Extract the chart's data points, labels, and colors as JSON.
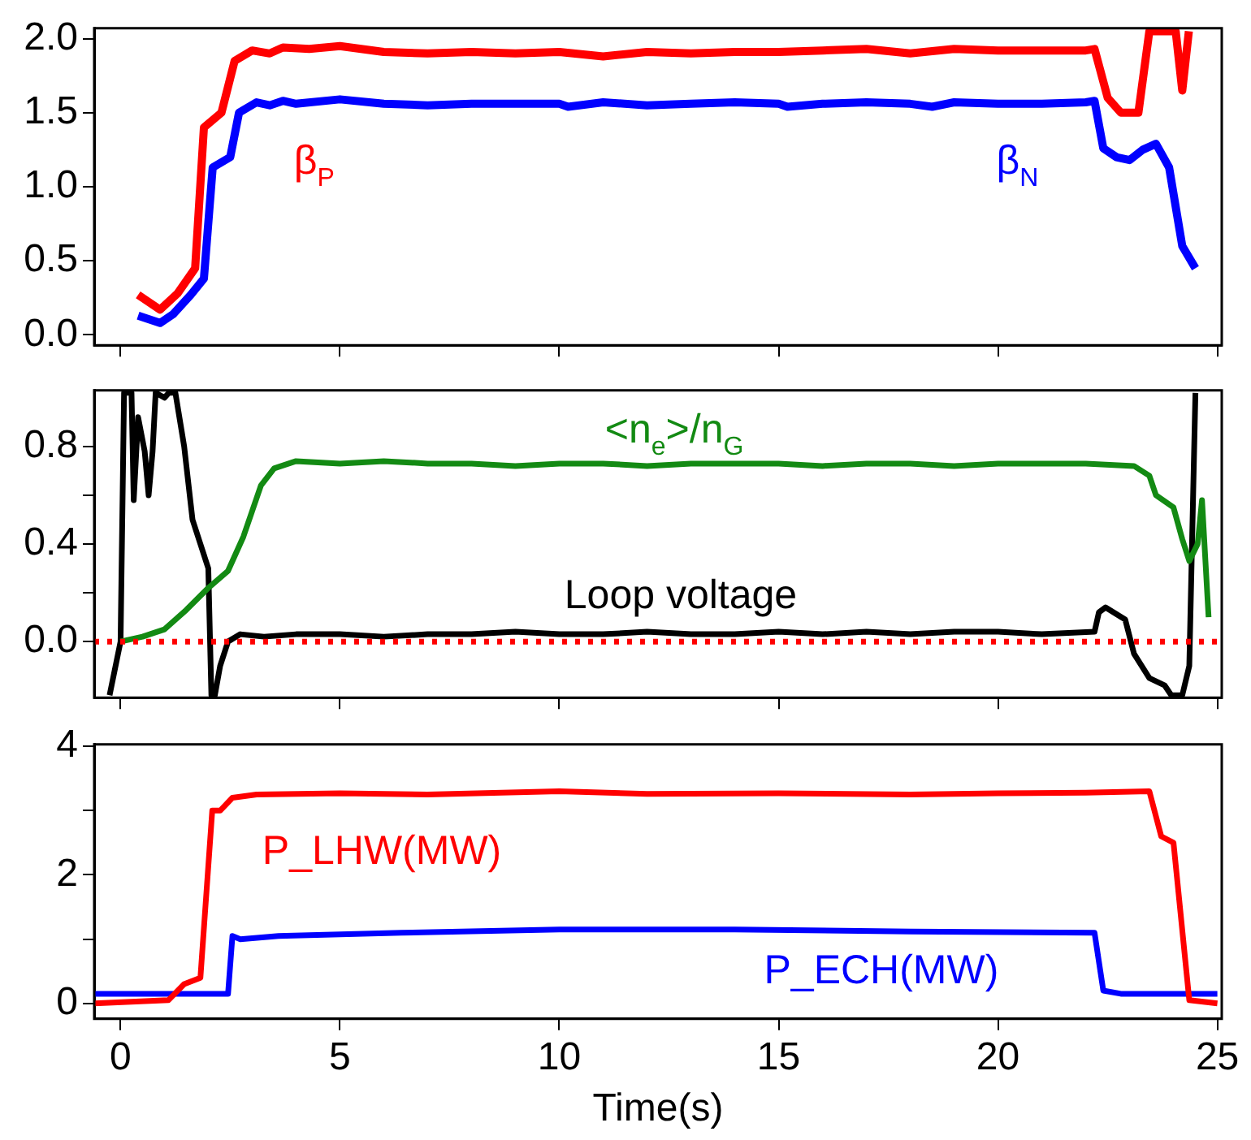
{
  "chart_data": [
    {
      "type": "line",
      "xlim": [
        -0.6,
        25.1
      ],
      "xticks": [
        0,
        5,
        10,
        15,
        20,
        25
      ],
      "ylim": [
        -0.07,
        2.07
      ],
      "yticks": [
        {
          "value": 0,
          "label": "0.0"
        },
        0.5,
        {
          "value": 1,
          "label": "1.0"
        },
        1.5,
        {
          "value": 2,
          "label": "2.0"
        }
      ],
      "tick_labels": "y",
      "legend": false,
      "grid": false,
      "marker": "none",
      "line_style": "solid",
      "series": [
        {
          "name": "β$_{P}$",
          "color": "#ff0000",
          "x": [
            0.4,
            0.9,
            1.3,
            1.7,
            1.9,
            2.3,
            2.6,
            3.0,
            3.4,
            3.7,
            4.3,
            5,
            6,
            7,
            8,
            9,
            10,
            11,
            12,
            13,
            14,
            15,
            16,
            17,
            18,
            19,
            20,
            21,
            22,
            22.2,
            22.5,
            22.8,
            23.2,
            23.45,
            24.05,
            24.2,
            24.35
          ],
          "values": [
            0.27,
            0.17,
            0.28,
            0.45,
            1.4,
            1.5,
            1.85,
            1.92,
            1.9,
            1.94,
            1.93,
            1.95,
            1.91,
            1.9,
            1.91,
            1.9,
            1.91,
            1.88,
            1.91,
            1.9,
            1.91,
            1.91,
            1.92,
            1.93,
            1.9,
            1.93,
            1.92,
            1.92,
            1.92,
            1.93,
            1.6,
            1.5,
            1.5,
            2.05,
            2.05,
            1.65,
            2.05
          ]
        },
        {
          "name": "β$_{N}$",
          "color": "#0000ff",
          "x": [
            0.4,
            0.9,
            1.2,
            1.6,
            1.9,
            2.1,
            2.5,
            2.7,
            3.1,
            3.4,
            3.7,
            4.0,
            5,
            6,
            7,
            8,
            9,
            10,
            10.2,
            11,
            12,
            13,
            14,
            15,
            15.2,
            16,
            17,
            18,
            18.5,
            19,
            20,
            21,
            22,
            22.2,
            22.4,
            22.7,
            23.0,
            23.3,
            23.6,
            23.9,
            24.2,
            24.5
          ],
          "values": [
            0.13,
            0.08,
            0.14,
            0.27,
            0.38,
            1.13,
            1.2,
            1.5,
            1.57,
            1.55,
            1.58,
            1.56,
            1.59,
            1.56,
            1.55,
            1.56,
            1.56,
            1.56,
            1.54,
            1.57,
            1.55,
            1.56,
            1.57,
            1.56,
            1.54,
            1.56,
            1.57,
            1.56,
            1.54,
            1.57,
            1.56,
            1.56,
            1.57,
            1.58,
            1.26,
            1.2,
            1.18,
            1.25,
            1.29,
            1.13,
            0.6,
            0.45
          ]
        }
      ]
    },
    {
      "type": "line",
      "xlim": [
        -0.6,
        25.1
      ],
      "xticks": [
        0,
        5,
        10,
        15,
        20,
        25
      ],
      "ylim": [
        -0.23,
        1.03
      ],
      "yticks": [
        {
          "value": 0,
          "label": "0.0"
        },
        {
          "value": 0.2,
          "label": null
        },
        0.4,
        {
          "value": 0.6,
          "label": null
        },
        0.8
      ],
      "tick_labels": "y",
      "legend": false,
      "grid": false,
      "marker": "none",
      "line_style": "solid",
      "ref_lines": [
        {
          "axis": "y",
          "value": 0,
          "label": null,
          "color": "#ff0000",
          "line_style": "dotted"
        }
      ],
      "series": [
        {
          "name": "<n$_{e}$>/n$_{G}$",
          "color": "#138a13",
          "x": [
            0,
            0.5,
            1.0,
            1.5,
            2.0,
            2.45,
            2.8,
            3.2,
            3.5,
            4.0,
            5,
            6,
            7,
            8,
            9,
            10,
            11,
            12,
            13,
            14,
            15,
            16,
            17,
            18,
            19,
            20,
            21,
            22,
            23.1,
            23.45,
            23.6,
            24.0,
            24.2,
            24.36,
            24.55,
            24.65,
            24.8
          ],
          "values": [
            0.0,
            0.02,
            0.05,
            0.13,
            0.22,
            0.29,
            0.43,
            0.64,
            0.71,
            0.74,
            0.73,
            0.74,
            0.73,
            0.73,
            0.72,
            0.73,
            0.73,
            0.72,
            0.73,
            0.73,
            0.73,
            0.72,
            0.73,
            0.73,
            0.72,
            0.73,
            0.73,
            0.73,
            0.72,
            0.68,
            0.6,
            0.55,
            0.42,
            0.33,
            0.4,
            0.58,
            0.1
          ]
        },
        {
          "name": "Loop voltage",
          "color": "#000000",
          "x": [
            -0.25,
            0.0,
            0.08,
            0.25,
            0.3,
            0.4,
            0.55,
            0.64,
            0.73,
            0.8,
            1.0,
            1.1,
            1.25,
            1.45,
            1.64,
            1.82,
            2.0,
            2.07,
            2.15,
            2.27,
            2.45,
            2.73,
            3.27,
            4,
            5,
            6,
            7,
            8,
            9,
            10,
            11,
            12,
            13,
            14,
            15,
            16,
            17,
            18,
            19,
            20,
            21,
            22.2,
            22.3,
            22.45,
            22.9,
            23.1,
            23.45,
            23.8,
            23.95,
            24.2,
            24.36,
            24.5
          ],
          "values": [
            -0.22,
            0.0,
            1.02,
            1.02,
            0.58,
            0.92,
            0.78,
            0.6,
            0.78,
            1.02,
            1.0,
            1.02,
            1.02,
            0.8,
            0.5,
            0.4,
            0.3,
            -0.22,
            -0.22,
            -0.1,
            0.0,
            0.03,
            0.02,
            0.03,
            0.03,
            0.02,
            0.03,
            0.03,
            0.04,
            0.03,
            0.03,
            0.04,
            0.03,
            0.03,
            0.04,
            0.03,
            0.04,
            0.03,
            0.04,
            0.04,
            0.03,
            0.04,
            0.12,
            0.14,
            0.09,
            -0.05,
            -0.15,
            -0.18,
            -0.22,
            -0.22,
            -0.1,
            1.02
          ]
        }
      ]
    },
    {
      "type": "line",
      "xlim": [
        -0.6,
        25.1
      ],
      "xticks": [
        0,
        5,
        10,
        15,
        20,
        25
      ],
      "ylim": [
        -0.24,
        4.03
      ],
      "yticks": [
        0,
        {
          "value": 1,
          "label": null
        },
        2,
        {
          "value": 3,
          "label": null
        },
        4
      ],
      "xlabel": "Time(s)",
      "legend": false,
      "grid": false,
      "marker": "none",
      "line_style": "solid",
      "series": [
        {
          "name": "P_LHW(MW)",
          "color": "#ff0000",
          "x": [
            -0.6,
            1.09,
            1.45,
            1.82,
            2.09,
            2.27,
            2.55,
            3.1,
            5,
            7,
            10,
            12,
            15,
            18,
            20,
            22,
            23.45,
            23.72,
            24.0,
            24.36,
            25
          ],
          "values": [
            0.0,
            0.05,
            0.3,
            0.4,
            3.0,
            3.0,
            3.2,
            3.25,
            3.27,
            3.25,
            3.3,
            3.26,
            3.27,
            3.25,
            3.27,
            3.28,
            3.3,
            2.6,
            2.5,
            0.05,
            0.0
          ]
        },
        {
          "name": "P_ECH(MW)",
          "color": "#0000ff",
          "x": [
            -0.6,
            2.45,
            2.55,
            2.73,
            3.6,
            6.4,
            10,
            14,
            18,
            22.2,
            22.4,
            22.8,
            25
          ],
          "values": [
            0.15,
            0.15,
            1.05,
            1.0,
            1.05,
            1.1,
            1.15,
            1.15,
            1.12,
            1.1,
            0.2,
            0.15,
            0.15
          ]
        }
      ]
    }
  ]
}
